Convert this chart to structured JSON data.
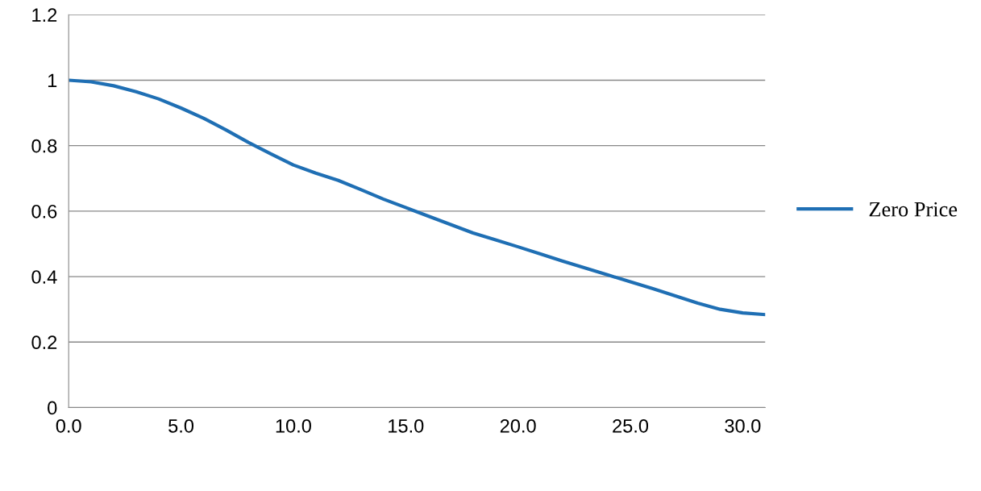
{
  "chart_data": {
    "type": "line",
    "x": [
      0,
      1,
      2,
      3,
      4,
      5,
      6,
      7,
      8,
      9,
      10,
      11,
      12,
      13,
      14,
      15,
      16,
      17,
      18,
      19,
      20,
      21,
      22,
      23,
      24,
      25,
      26,
      27,
      28,
      29,
      30,
      31
    ],
    "series": [
      {
        "name": "Zero Price",
        "color": "#1f6fb4",
        "values": [
          1.0,
          0.995,
          0.983,
          0.965,
          0.943,
          0.915,
          0.884,
          0.848,
          0.81,
          0.775,
          0.741,
          0.716,
          0.694,
          0.666,
          0.637,
          0.611,
          0.585,
          0.559,
          0.533,
          0.512,
          0.491,
          0.469,
          0.447,
          0.426,
          0.405,
          0.384,
          0.363,
          0.341,
          0.319,
          0.3,
          0.289,
          0.284
        ]
      }
    ],
    "xlim": [
      0,
      31
    ],
    "xticks": [
      {
        "value": 0,
        "label": "0.0"
      },
      {
        "value": 5,
        "label": "5.0"
      },
      {
        "value": 10,
        "label": "10.0"
      },
      {
        "value": 15,
        "label": "15.0"
      },
      {
        "value": 20,
        "label": "20.0"
      },
      {
        "value": 25,
        "label": "25.0"
      },
      {
        "value": 30,
        "label": "30.0"
      }
    ],
    "ylim": [
      0,
      1.2
    ],
    "yticks": [
      0,
      0.2,
      0.4,
      0.6,
      0.8,
      1,
      1.2
    ],
    "grid": "y",
    "legend": "right",
    "marker": "none",
    "line_style": "solid"
  }
}
